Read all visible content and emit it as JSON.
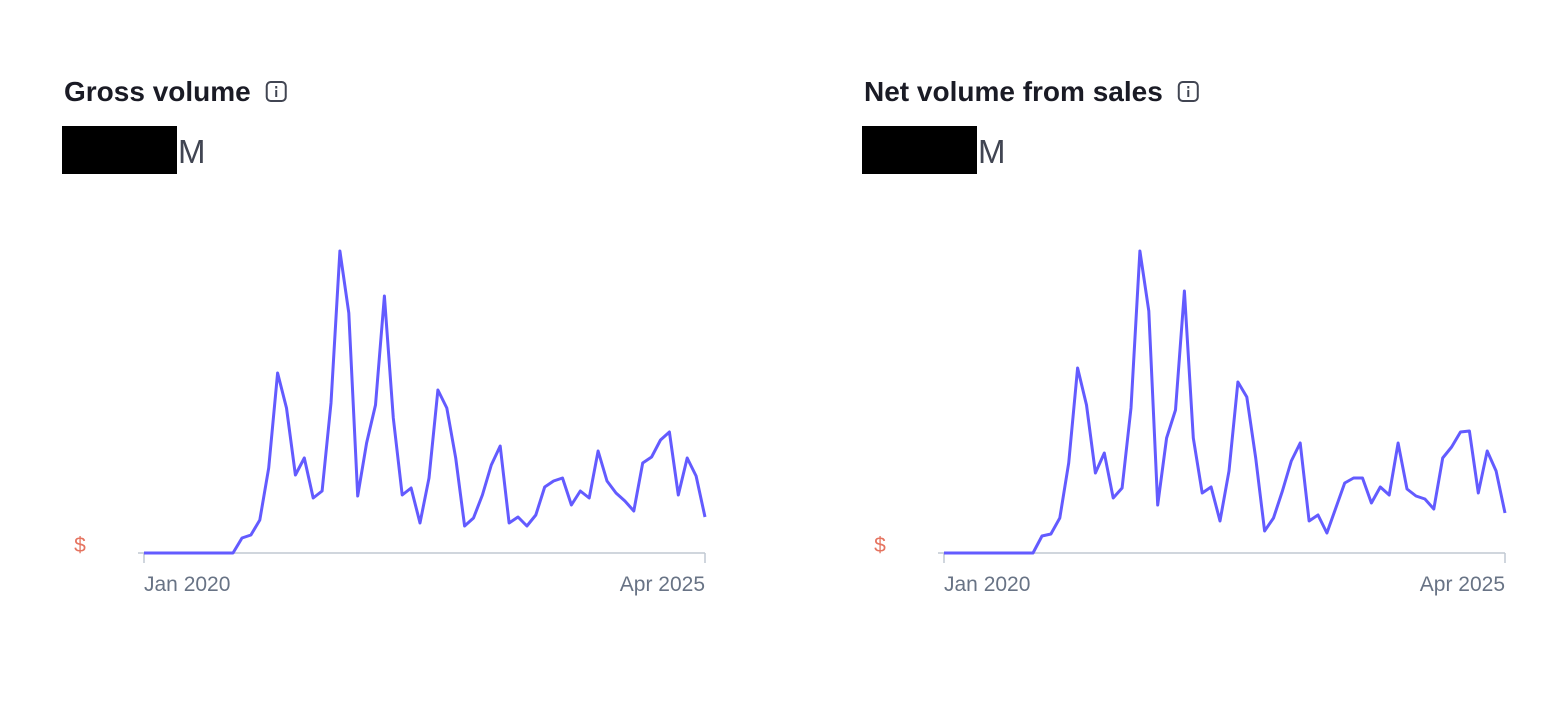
{
  "chart_data": [
    {
      "type": "line",
      "title": "Gross volume",
      "value_unit": "M",
      "y_label": "$",
      "color": "#635bff",
      "categories": [
        "Jan 2020",
        null,
        null,
        null,
        null,
        null,
        null,
        null,
        null,
        null,
        null,
        null,
        null,
        null,
        null,
        null,
        null,
        null,
        null,
        null,
        null,
        null,
        null,
        null,
        null,
        null,
        null,
        null,
        null,
        null,
        null,
        null,
        null,
        null,
        null,
        null,
        null,
        null,
        null,
        null,
        null,
        null,
        null,
        null,
        null,
        null,
        null,
        null,
        null,
        null,
        null,
        null,
        null,
        null,
        null,
        null,
        null,
        null,
        null,
        null,
        null,
        null,
        null,
        "Apr 2025"
      ],
      "values": [
        0,
        0,
        0,
        0,
        0,
        0,
        0,
        0,
        0,
        0,
        0,
        15,
        18,
        33,
        85,
        180,
        145,
        78,
        95,
        55,
        62,
        150,
        302,
        240,
        57,
        110,
        148,
        257,
        135,
        58,
        65,
        30,
        75,
        163,
        145,
        95,
        27,
        35,
        58,
        88,
        107,
        30,
        36,
        27,
        38,
        66,
        72,
        75,
        48,
        62,
        55,
        102,
        72,
        60,
        52,
        42,
        90,
        96,
        113,
        121,
        58,
        95,
        77,
        36
      ],
      "ylim": [
        0,
        320
      ]
    },
    {
      "type": "line",
      "title": "Net volume from sales",
      "value_unit": "M",
      "y_label": "$",
      "color": "#635bff",
      "categories": [
        "Jan 2020",
        null,
        null,
        null,
        null,
        null,
        null,
        null,
        null,
        null,
        null,
        null,
        null,
        null,
        null,
        null,
        null,
        null,
        null,
        null,
        null,
        null,
        null,
        null,
        null,
        null,
        null,
        null,
        null,
        null,
        null,
        null,
        null,
        null,
        null,
        null,
        null,
        null,
        null,
        null,
        null,
        null,
        null,
        null,
        null,
        null,
        null,
        null,
        null,
        null,
        null,
        null,
        null,
        null,
        null,
        null,
        null,
        null,
        null,
        null,
        null,
        null,
        null,
        "Apr 2025"
      ],
      "values": [
        0,
        0,
        0,
        0,
        0,
        0,
        0,
        0,
        0,
        0,
        0,
        17,
        19,
        35,
        90,
        185,
        148,
        80,
        100,
        55,
        65,
        145,
        302,
        242,
        48,
        115,
        143,
        262,
        115,
        60,
        66,
        32,
        82,
        171,
        156,
        95,
        22,
        35,
        62,
        92,
        110,
        32,
        38,
        20,
        45,
        70,
        75,
        75,
        50,
        66,
        58,
        110,
        64,
        57,
        54,
        44,
        95,
        106,
        121,
        122,
        60,
        102,
        82,
        40
      ],
      "ylim": [
        0,
        320
      ]
    }
  ]
}
